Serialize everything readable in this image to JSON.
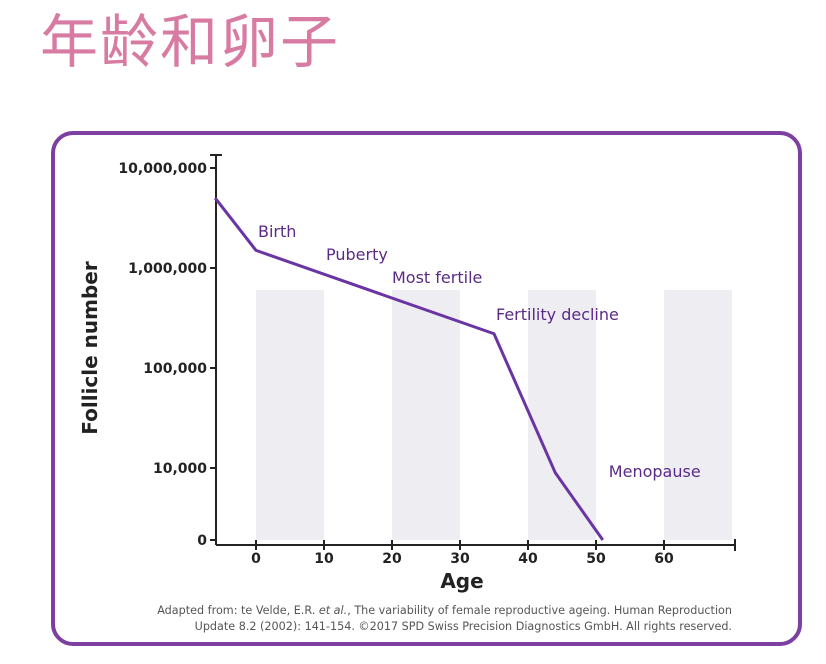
{
  "page": {
    "title": "年龄和卵子"
  },
  "chart_data": {
    "type": "line",
    "xlabel": "Age",
    "ylabel": "Follicle number",
    "x_ticks": [
      "0",
      "10",
      "20",
      "30",
      "40",
      "50",
      "60"
    ],
    "y_ticks": [
      "10,000,000",
      "1,000,000",
      "100,000",
      "10,000",
      "0"
    ],
    "xlim": [
      -6,
      70
    ],
    "y_scale": "log",
    "series": [
      {
        "x": [
          -6,
          0,
          35,
          44,
          51
        ],
        "y": [
          5000000,
          1500000,
          220000,
          9000,
          0
        ]
      }
    ],
    "annotations": [
      {
        "text": "Birth",
        "x": 0
      },
      {
        "text": "Puberty",
        "x": 10
      },
      {
        "text": "Most fertile",
        "x": 20
      },
      {
        "text": "Fertility decline",
        "x": 35
      },
      {
        "text": "Menopause",
        "x": 51
      }
    ],
    "shaded_bands": [
      [
        0,
        10
      ],
      [
        20,
        30
      ],
      [
        40,
        50
      ],
      [
        60,
        70
      ]
    ],
    "line_color": "#6a35a3",
    "band_color": "#eeeef2",
    "frame_color": "#7d3fa0"
  },
  "caption": {
    "line1_prefix": "Adapted from: te Velde, E.R. ",
    "line1_italic": "et al.",
    "line1_suffix": ", The variability of female reproductive ageing. Human Reproduction",
    "line2": "Update 8.2 (2002): 141-154. ©2017 SPD Swiss Precision Diagnostics GmbH. All rights reserved."
  }
}
